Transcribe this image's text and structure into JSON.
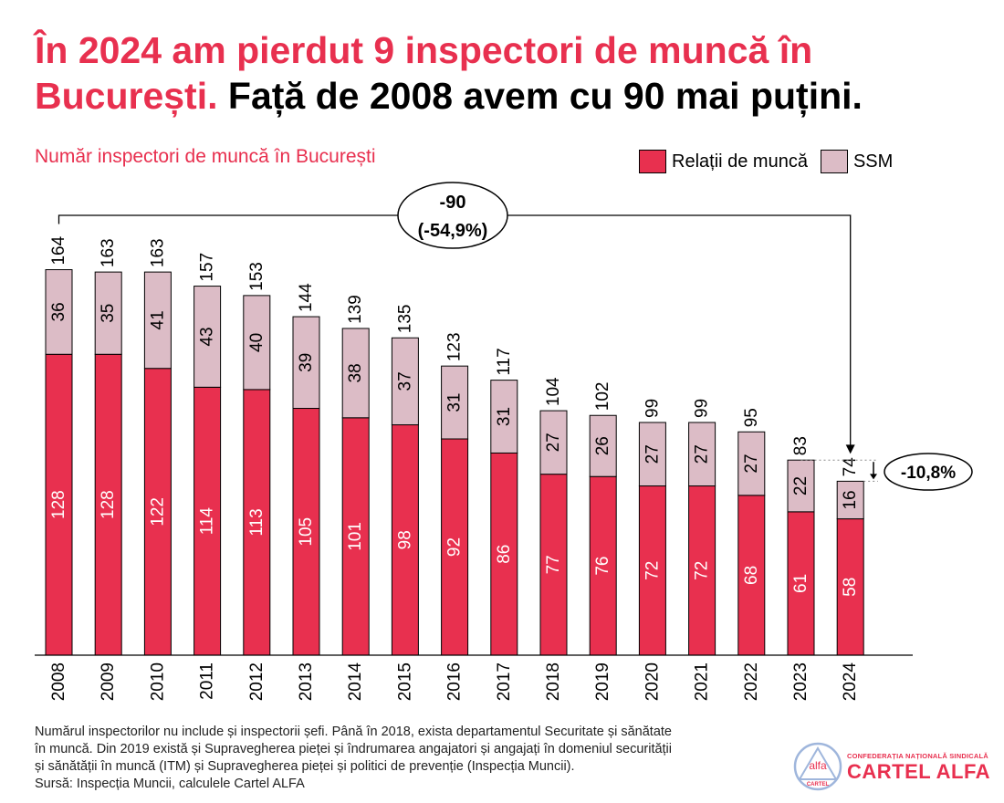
{
  "headline": {
    "part_red": "În 2024 am pierdut 9 inspectori de muncă în București.",
    "part_black": "Față de 2008 avem cu 90 mai puțini."
  },
  "colors": {
    "red": "#e8304f",
    "pink": "#dcbcc6",
    "text": "#000000"
  },
  "chart_data": {
    "type": "bar",
    "stacked": true,
    "title": "Număr inspectori de muncă în București",
    "categories": [
      "2008",
      "2009",
      "2010",
      "2011",
      "2012",
      "2013",
      "2014",
      "2015",
      "2016",
      "2017",
      "2018",
      "2019",
      "2020",
      "2021",
      "2022",
      "2023",
      "2024"
    ],
    "series": [
      {
        "name": "Relații de muncă",
        "color": "#e8304f",
        "values": [
          128,
          128,
          122,
          114,
          113,
          105,
          101,
          98,
          92,
          86,
          77,
          76,
          72,
          72,
          68,
          61,
          58
        ]
      },
      {
        "name": "SSM",
        "color": "#dcbcc6",
        "values": [
          36,
          35,
          41,
          43,
          40,
          39,
          38,
          37,
          31,
          31,
          27,
          26,
          27,
          27,
          27,
          22,
          16
        ]
      }
    ],
    "totals": [
      164,
      163,
      163,
      157,
      153,
      144,
      139,
      135,
      123,
      117,
      104,
      102,
      99,
      99,
      95,
      83,
      74
    ],
    "legend_position": "top-right",
    "grid": false,
    "annotations": [
      {
        "type": "bracket",
        "from": "2008",
        "to": "2024",
        "line1": "-90",
        "line2": "(-54,9%)"
      },
      {
        "type": "change",
        "from": "2023",
        "to": "2024",
        "text": "-10,8%"
      }
    ]
  },
  "footnote": {
    "lines": [
      "Numărul inspectorilor nu include și inspectorii șefi. Până în 2018, exista departamentul Securitate și sănătate",
      "în muncă. Din 2019 există și Supravegherea pieței și îndrumarea angajatori și angajați în domeniul securității",
      "și sănătății în muncă (ITM) și Supravegherea pieței și politici de prevenție (Inspecția Muncii).",
      "Sursă: Inspecția Muncii, calculele Cartel ALFA"
    ]
  },
  "logo": {
    "emblem_top": "alfa",
    "emblem_bottom": "CARTEL",
    "sub": "CONFEDERAȚIA NAȚIONALĂ SINDICALĂ",
    "main": "CARTEL ALFA"
  }
}
